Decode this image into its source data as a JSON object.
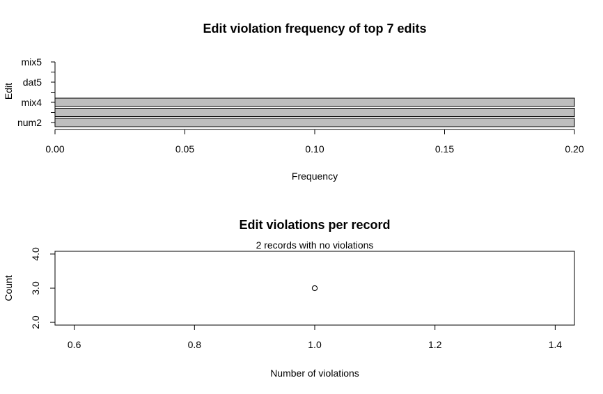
{
  "chart_data": [
    {
      "type": "bar",
      "orientation": "horizontal",
      "title": "Edit violation frequency of top 7 edits",
      "xlabel": "Frequency",
      "ylabel": "Edit",
      "xlim": [
        0,
        0.2
      ],
      "x_ticks": [
        "0.00",
        "0.05",
        "0.10",
        "0.15",
        "0.20"
      ],
      "categories": [
        "num2",
        "",
        "mix4",
        "",
        "dat5",
        "",
        "mix5"
      ],
      "values": [
        0.2,
        0.2,
        0.2,
        0,
        0,
        0,
        0
      ],
      "bar_color": "#bebebe",
      "grid": false
    },
    {
      "type": "scatter",
      "title": "Edit violations per record",
      "subtitle": "2 records with no violations",
      "xlabel": "Number of violations",
      "ylabel": "Count",
      "xlim": [
        0.6,
        1.4
      ],
      "ylim": [
        2.0,
        4.0
      ],
      "x_ticks": [
        "0.6",
        "0.8",
        "1.0",
        "1.2",
        "1.4"
      ],
      "y_ticks": [
        "2.0",
        "3.0",
        "4.0"
      ],
      "points": [
        {
          "x": 1,
          "y": 3
        }
      ],
      "marker": "open-circle",
      "grid": false
    }
  ]
}
